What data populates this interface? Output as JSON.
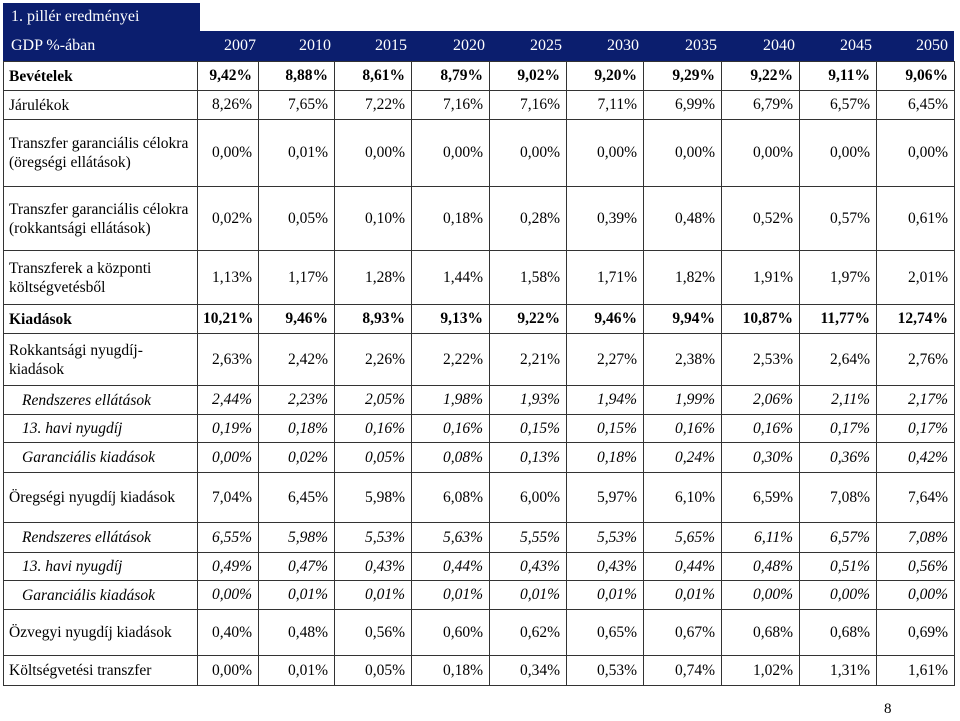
{
  "title": "1. pillér eredményei",
  "header": {
    "label": "GDP %-ában",
    "years": [
      "2007",
      "2010",
      "2015",
      "2020",
      "2025",
      "2030",
      "2035",
      "2040",
      "2045",
      "2050"
    ]
  },
  "rows": [
    {
      "label": "Bevételek",
      "style": "bold",
      "values": [
        "9,42%",
        "8,88%",
        "8,61%",
        "8,79%",
        "9,02%",
        "9,20%",
        "9,29%",
        "9,22%",
        "9,11%",
        "9,06%"
      ]
    },
    {
      "label": "Járulékok",
      "style": "normal",
      "values": [
        "8,26%",
        "7,65%",
        "7,22%",
        "7,16%",
        "7,16%",
        "7,11%",
        "6,99%",
        "6,79%",
        "6,57%",
        "6,45%"
      ]
    },
    {
      "label": "Transzfer garanciális célokra (öregségi ellátások)",
      "style": "normal",
      "values": [
        "0,00%",
        "0,01%",
        "0,00%",
        "0,00%",
        "0,00%",
        "0,00%",
        "0,00%",
        "0,00%",
        "0,00%",
        "0,00%"
      ]
    },
    {
      "label": "Transzfer garanciális célokra (rokkantsági ellátások)",
      "style": "normal",
      "values": [
        "0,02%",
        "0,05%",
        "0,10%",
        "0,18%",
        "0,28%",
        "0,39%",
        "0,48%",
        "0,52%",
        "0,57%",
        "0,61%"
      ]
    },
    {
      "label": "Transzferek a központi költségvetésből",
      "style": "normal",
      "values": [
        "1,13%",
        "1,17%",
        "1,28%",
        "1,44%",
        "1,58%",
        "1,71%",
        "1,82%",
        "1,91%",
        "1,97%",
        "2,01%"
      ]
    },
    {
      "label": "Kiadások",
      "style": "bold",
      "values": [
        "10,21%",
        "9,46%",
        "8,93%",
        "9,13%",
        "9,22%",
        "9,46%",
        "9,94%",
        "10,87%",
        "11,77%",
        "12,74%"
      ]
    },
    {
      "label": "Rokkantsági nyugdíj-kiadások",
      "style": "normal",
      "values": [
        "2,63%",
        "2,42%",
        "2,26%",
        "2,22%",
        "2,21%",
        "2,27%",
        "2,38%",
        "2,53%",
        "2,64%",
        "2,76%"
      ]
    },
    {
      "label": "Rendszeres ellátások",
      "style": "italic",
      "values": [
        "2,44%",
        "2,23%",
        "2,05%",
        "1,98%",
        "1,93%",
        "1,94%",
        "1,99%",
        "2,06%",
        "2,11%",
        "2,17%"
      ]
    },
    {
      "label": "13. havi nyugdíj",
      "style": "italic",
      "values": [
        "0,19%",
        "0,18%",
        "0,16%",
        "0,16%",
        "0,15%",
        "0,15%",
        "0,16%",
        "0,16%",
        "0,17%",
        "0,17%"
      ]
    },
    {
      "label": "Garanciális kiadások",
      "style": "italic",
      "values": [
        "0,00%",
        "0,02%",
        "0,05%",
        "0,08%",
        "0,13%",
        "0,18%",
        "0,24%",
        "0,30%",
        "0,36%",
        "0,42%"
      ]
    },
    {
      "label": "Öregségi nyugdíj kiadások",
      "style": "normal",
      "values": [
        "7,04%",
        "6,45%",
        "5,98%",
        "6,08%",
        "6,00%",
        "5,97%",
        "6,10%",
        "6,59%",
        "7,08%",
        "7,64%"
      ]
    },
    {
      "label": "Rendszeres ellátások",
      "style": "italic",
      "values": [
        "6,55%",
        "5,98%",
        "5,53%",
        "5,63%",
        "5,55%",
        "5,53%",
        "5,65%",
        "6,11%",
        "6,57%",
        "7,08%"
      ]
    },
    {
      "label": "13. havi nyugdíj",
      "style": "italic",
      "values": [
        "0,49%",
        "0,47%",
        "0,43%",
        "0,44%",
        "0,43%",
        "0,43%",
        "0,44%",
        "0,48%",
        "0,51%",
        "0,56%"
      ]
    },
    {
      "label": "Garanciális kiadások",
      "style": "italic",
      "values": [
        "0,00%",
        "0,01%",
        "0,01%",
        "0,01%",
        "0,01%",
        "0,01%",
        "0,01%",
        "0,00%",
        "0,00%",
        "0,00%"
      ]
    },
    {
      "label": "Özvegyi nyugdíj kiadások",
      "style": "normal",
      "values": [
        "0,40%",
        "0,48%",
        "0,56%",
        "0,60%",
        "0,62%",
        "0,65%",
        "0,67%",
        "0,68%",
        "0,68%",
        "0,69%"
      ]
    },
    {
      "label": "Költségvetési transzfer",
      "style": "normal",
      "values": [
        "0,00%",
        "0,01%",
        "0,05%",
        "0,18%",
        "0,34%",
        "0,53%",
        "0,74%",
        "1,02%",
        "1,31%",
        "1,61%"
      ]
    }
  ],
  "page_number": "8",
  "colors": {
    "header_bg": "#0b1e6e",
    "header_text": "#ffffff"
  }
}
